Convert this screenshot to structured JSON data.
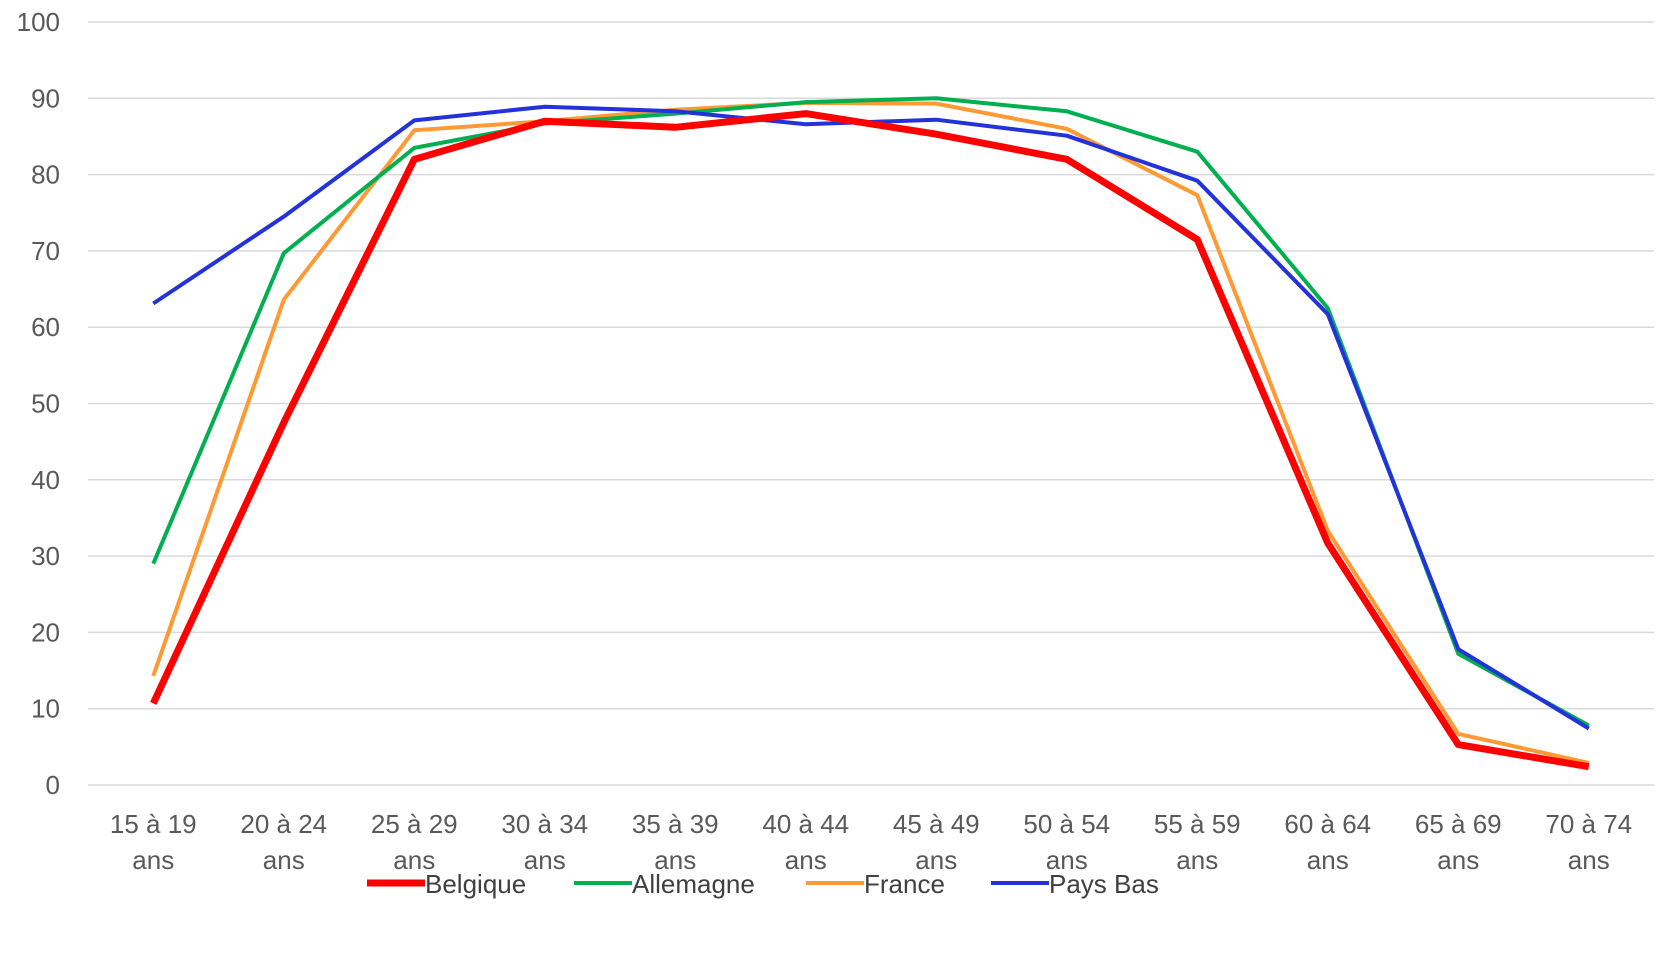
{
  "chart_data": {
    "type": "line",
    "title": "",
    "xlabel": "",
    "ylabel": "",
    "ylim": [
      0,
      100
    ],
    "yticks": [
      0,
      10,
      20,
      30,
      40,
      50,
      60,
      70,
      80,
      90,
      100
    ],
    "grid": "horizontal",
    "legend_position": "bottom",
    "categories": [
      [
        "15 à 19",
        "ans"
      ],
      [
        "20 à 24",
        "ans"
      ],
      [
        "25 à 29",
        "ans"
      ],
      [
        "30 à 34",
        "ans"
      ],
      [
        "35 à 39",
        "ans"
      ],
      [
        "40 à 44",
        "ans"
      ],
      [
        "45 à 49",
        "ans"
      ],
      [
        "50 à 54",
        "ans"
      ],
      [
        "55 à 59",
        "ans"
      ],
      [
        "60 à 64",
        "ans"
      ],
      [
        "65 à 69",
        "ans"
      ],
      [
        "70 à 74",
        "ans"
      ]
    ],
    "series": [
      {
        "name": "Belgique",
        "color": "#ff0000",
        "values": [
          10.7,
          47.5,
          82.0,
          87.0,
          86.2,
          88.0,
          85.3,
          82.0,
          71.5,
          31.7,
          5.3,
          2.4
        ]
      },
      {
        "name": "Allemagne",
        "color": "#00b050",
        "values": [
          29.0,
          69.7,
          83.5,
          86.7,
          88.0,
          89.5,
          90.0,
          88.3,
          83.0,
          62.5,
          17.2,
          7.8
        ]
      },
      {
        "name": "France",
        "color": "#ff9933",
        "values": [
          14.3,
          63.6,
          85.8,
          87.0,
          88.5,
          89.4,
          89.3,
          86.0,
          77.3,
          33.3,
          6.7,
          2.9
        ]
      },
      {
        "name": "Pays Bas",
        "color": "#2332d9",
        "values": [
          63.1,
          74.5,
          87.1,
          88.9,
          88.3,
          86.6,
          87.2,
          85.1,
          79.2,
          61.7,
          17.8,
          7.4
        ]
      }
    ]
  }
}
